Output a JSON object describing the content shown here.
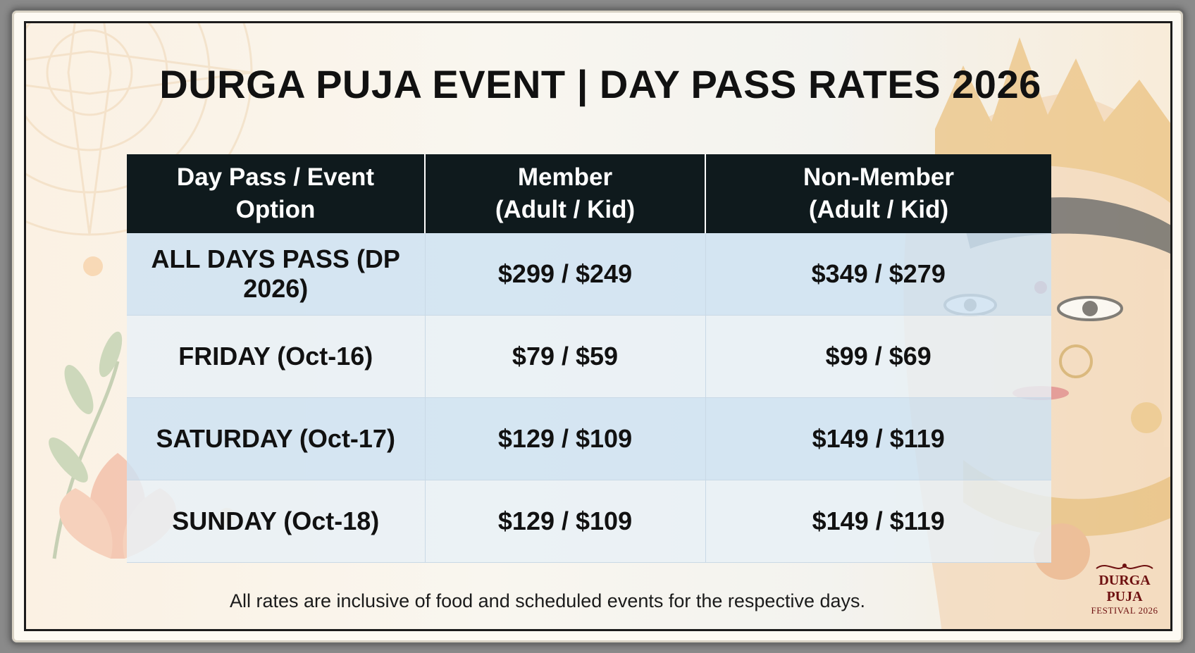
{
  "title": "DURGA PUJA EVENT | DAY PASS RATES 2026",
  "table": {
    "headers": [
      [
        "Day Pass / Event Option"
      ],
      [
        "Member",
        "(Adult / Kid)"
      ],
      [
        "Non-Member",
        "(Adult / Kid)"
      ]
    ],
    "rows": [
      {
        "option": "ALL DAYS PASS (DP 2026)",
        "member": "$299 / $249",
        "non_member": "$349 / $279"
      },
      {
        "option": "FRIDAY (Oct-16)",
        "member": "$79 / $59",
        "non_member": "$99 / $69"
      },
      {
        "option": "SATURDAY (Oct-17)",
        "member": "$129 / $109",
        "non_member": "$149 / $119"
      },
      {
        "option": "SUNDAY (Oct-18)",
        "member": "$129 / $109",
        "non_member": "$149 / $119"
      }
    ]
  },
  "footnote": "All rates are inclusive of food and scheduled events for the respective days.",
  "badge": {
    "line1": "DURGA PUJA",
    "line2": "FESTIVAL 2026"
  },
  "colors": {
    "header_bg": "#0f1a1d",
    "row_alt": "#cde2f3",
    "row_base": "#e8f0f7",
    "badge": "#6e1010"
  }
}
